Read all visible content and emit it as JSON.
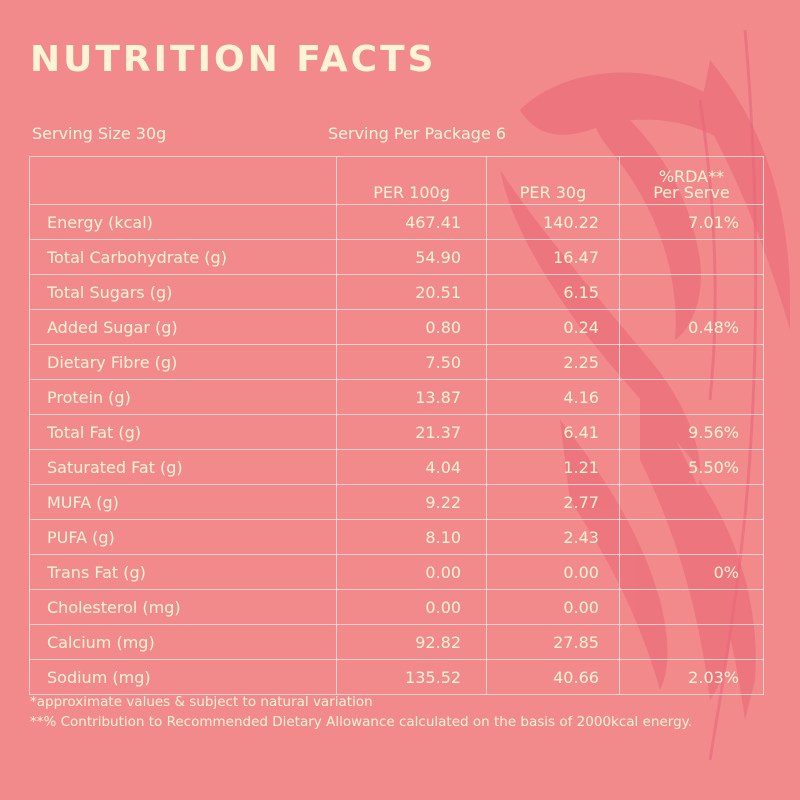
{
  "title": "NUTRITION FACTS",
  "serving": {
    "size": "Serving Size 30g",
    "per_package": "Serving Per Package 6"
  },
  "table": {
    "headers": {
      "name": "",
      "per100g": "PER 100g",
      "per30g": "PER 30g",
      "rda_line1": "%RDA**",
      "rda_line2": "Per Serve"
    },
    "rows": [
      {
        "name": "Energy (kcal)",
        "per100g": "467.41",
        "per30g": "140.22",
        "rda": "7.01%"
      },
      {
        "name": "Total Carbohydrate (g)",
        "per100g": "54.90",
        "per30g": "16.47",
        "rda": ""
      },
      {
        "name": "Total Sugars (g)",
        "per100g": "20.51",
        "per30g": "6.15",
        "rda": ""
      },
      {
        "name": "Added Sugar (g)",
        "per100g": "0.80",
        "per30g": "0.24",
        "rda": "0.48%"
      },
      {
        "name": "Dietary Fibre (g)",
        "per100g": "7.50",
        "per30g": "2.25",
        "rda": ""
      },
      {
        "name": "Protein (g)",
        "per100g": "13.87",
        "per30g": "4.16",
        "rda": ""
      },
      {
        "name": "Total Fat (g)",
        "per100g": "21.37",
        "per30g": "6.41",
        "rda": "9.56%"
      },
      {
        "name": "Saturated Fat (g)",
        "per100g": "4.04",
        "per30g": "1.21",
        "rda": "5.50%"
      },
      {
        "name": "MUFA (g)",
        "per100g": "9.22",
        "per30g": "2.77",
        "rda": ""
      },
      {
        "name": "PUFA (g)",
        "per100g": "8.10",
        "per30g": "2.43",
        "rda": ""
      },
      {
        "name": "Trans Fat (g)",
        "per100g": "0.00",
        "per30g": "0.00",
        "rda": "0%"
      },
      {
        "name": "Cholesterol (mg)",
        "per100g": "0.00",
        "per30g": "0.00",
        "rda": ""
      },
      {
        "name": "Calcium (mg)",
        "per100g": "92.82",
        "per30g": "27.85",
        "rda": ""
      },
      {
        "name": "Sodium (mg)",
        "per100g": "135.52",
        "per30g": "40.66",
        "rda": "2.03%"
      }
    ]
  },
  "footnotes": {
    "note1": "*approximate values & subject to natural variation",
    "note2": "**% Contribution to Recommended Dietary Allowance calculated on the basis of 2000kcal energy."
  },
  "colors": {
    "background": "#f28a8c",
    "text": "#fdf3d6",
    "decor": "#ec6f7a"
  }
}
